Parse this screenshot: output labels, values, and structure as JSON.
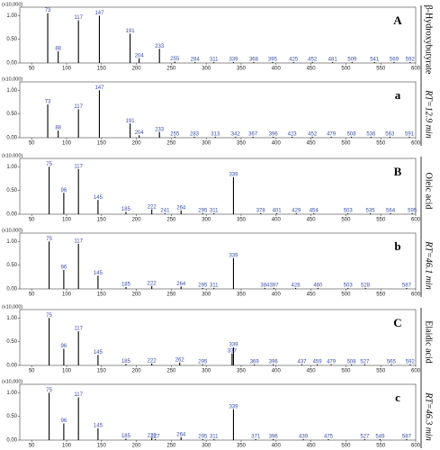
{
  "chart_data": [
    {
      "type": "bar",
      "panel_label": "A",
      "y_unit": "(x10,000)",
      "color": "#000000",
      "label_color": "#3a4fa8",
      "x": [
        73,
        88,
        117,
        147,
        191,
        204,
        233,
        255,
        284,
        311,
        339,
        368,
        395,
        425,
        452,
        481,
        509,
        541,
        569,
        592
      ],
      "values": [
        1.05,
        0.25,
        0.9,
        1.0,
        0.62,
        0.1,
        0.3,
        0.03,
        0.02,
        0.02,
        0.02,
        0.02,
        0.02,
        0.02,
        0.02,
        0.02,
        0.02,
        0.02,
        0.02,
        0.02
      ],
      "xlim": [
        33,
        600
      ],
      "xticks": [
        50,
        100,
        150,
        200,
        250,
        300,
        350,
        400,
        450,
        500,
        550,
        600
      ],
      "ylim": [
        0,
        1.1
      ],
      "yticks": [
        {
          "value": 0,
          "label": "0.00"
        },
        {
          "value": 0.5,
          "label": "0.50"
        },
        {
          "value": 1,
          "label": "1.00"
        }
      ]
    },
    {
      "type": "bar",
      "panel_label": "a",
      "y_unit": "(x10,000)",
      "color": "#000000",
      "label_color": "#3a4fa8",
      "x": [
        73,
        88,
        117,
        147,
        191,
        204,
        233,
        255,
        283,
        313,
        342,
        367,
        396,
        423,
        452,
        479,
        508,
        536,
        563,
        591
      ],
      "values": [
        0.7,
        0.15,
        0.6,
        1.0,
        0.3,
        0.05,
        0.12,
        0.02,
        0.02,
        0.02,
        0.02,
        0.02,
        0.02,
        0.02,
        0.02,
        0.02,
        0.02,
        0.02,
        0.02,
        0.02
      ],
      "xlim": [
        33,
        600
      ],
      "xticks": [
        50,
        100,
        150,
        200,
        250,
        300,
        350,
        400,
        450,
        500,
        550,
        600
      ],
      "ylim": [
        0,
        1.1
      ],
      "yticks": [
        {
          "value": 0,
          "label": "0.00"
        },
        {
          "value": 0.5,
          "label": "0.50"
        },
        {
          "value": 1,
          "label": "1.00"
        }
      ]
    },
    {
      "type": "bar",
      "panel_label": "B",
      "y_unit": "(x10,000)",
      "color": "#000000",
      "label_color": "#3a4fa8",
      "x": [
        75,
        96,
        117,
        145,
        185,
        222,
        241,
        264,
        295,
        311,
        339,
        378,
        401,
        429,
        454,
        503,
        535,
        564,
        595
      ],
      "values": [
        1.0,
        0.45,
        0.95,
        0.3,
        0.05,
        0.1,
        0.02,
        0.08,
        0.02,
        0.02,
        0.78,
        0.02,
        0.02,
        0.02,
        0.02,
        0.02,
        0.02,
        0.02,
        0.02
      ],
      "xlim": [
        33,
        600
      ],
      "xticks": [
        50,
        100,
        150,
        200,
        250,
        300,
        350,
        400,
        450,
        500,
        550,
        600
      ],
      "ylim": [
        0,
        1.1
      ],
      "yticks": [
        {
          "value": 0,
          "label": "0.00"
        },
        {
          "value": 0.5,
          "label": "0.50"
        },
        {
          "value": 1,
          "label": "1.00"
        }
      ]
    },
    {
      "type": "bar",
      "panel_label": "b",
      "y_unit": "(x10,000)",
      "color": "#000000",
      "label_color": "#3a4fa8",
      "x": [
        75,
        96,
        117,
        145,
        185,
        222,
        264,
        295,
        311,
        339,
        384,
        397,
        428,
        460,
        503,
        528,
        587
      ],
      "values": [
        1.0,
        0.4,
        0.95,
        0.28,
        0.04,
        0.06,
        0.05,
        0.02,
        0.02,
        0.65,
        0.02,
        0.02,
        0.02,
        0.02,
        0.02,
        0.02,
        0.02
      ],
      "xlim": [
        33,
        600
      ],
      "xticks": [
        50,
        100,
        150,
        200,
        250,
        300,
        350,
        400,
        450,
        500,
        550,
        600
      ],
      "ylim": [
        0,
        1.1
      ],
      "yticks": [
        {
          "value": 0,
          "label": "0.00"
        },
        {
          "value": 0.5,
          "label": "0.50"
        },
        {
          "value": 1,
          "label": "1.00"
        }
      ]
    },
    {
      "type": "bar",
      "panel_label": "C",
      "y_unit": "(x10,000)",
      "color": "#000000",
      "label_color": "#3a4fa8",
      "x": [
        75,
        96,
        117,
        145,
        185,
        222,
        262,
        295,
        337,
        339,
        369,
        396,
        437,
        459,
        479,
        508,
        527,
        565,
        592
      ],
      "values": [
        1.0,
        0.35,
        0.72,
        0.22,
        0.03,
        0.04,
        0.06,
        0.02,
        0.25,
        0.38,
        0.02,
        0.02,
        0.02,
        0.02,
        0.02,
        0.02,
        0.02,
        0.02,
        0.02
      ],
      "xlim": [
        33,
        600
      ],
      "xticks": [
        50,
        100,
        150,
        200,
        250,
        300,
        350,
        400,
        450,
        500,
        550,
        600
      ],
      "ylim": [
        0,
        1.1
      ],
      "yticks": [
        {
          "value": 0,
          "label": "0.00"
        },
        {
          "value": 0.5,
          "label": "0.50"
        },
        {
          "value": 1,
          "label": "1.00"
        }
      ]
    },
    {
      "type": "bar",
      "panel_label": "c",
      "y_unit": "(x10,000)",
      "color": "#000000",
      "label_color": "#3a4fa8",
      "x": [
        75,
        96,
        117,
        145,
        185,
        222,
        227,
        264,
        295,
        311,
        339,
        371,
        396,
        439,
        475,
        527,
        549,
        587
      ],
      "values": [
        1.0,
        0.35,
        0.9,
        0.25,
        0.03,
        0.04,
        0.02,
        0.06,
        0.02,
        0.02,
        0.65,
        0.02,
        0.02,
        0.02,
        0.02,
        0.02,
        0.02,
        0.02
      ],
      "xlim": [
        33,
        600
      ],
      "xticks": [
        50,
        100,
        150,
        200,
        250,
        300,
        350,
        400,
        450,
        500,
        550,
        600
      ],
      "ylim": [
        0,
        1.1
      ],
      "yticks": [
        {
          "value": 0,
          "label": "0.00"
        },
        {
          "value": 0.5,
          "label": "0.50"
        },
        {
          "value": 1,
          "label": "1.00"
        }
      ]
    }
  ],
  "groups": [
    {
      "compound": "β-Hydroxybutyrate",
      "retention": "RT=12.9 min"
    },
    {
      "compound": "Oleic acid",
      "retention": "RT=46.1 min"
    },
    {
      "compound": "Elaidic acid",
      "retention": "RT=46.3 min"
    }
  ]
}
